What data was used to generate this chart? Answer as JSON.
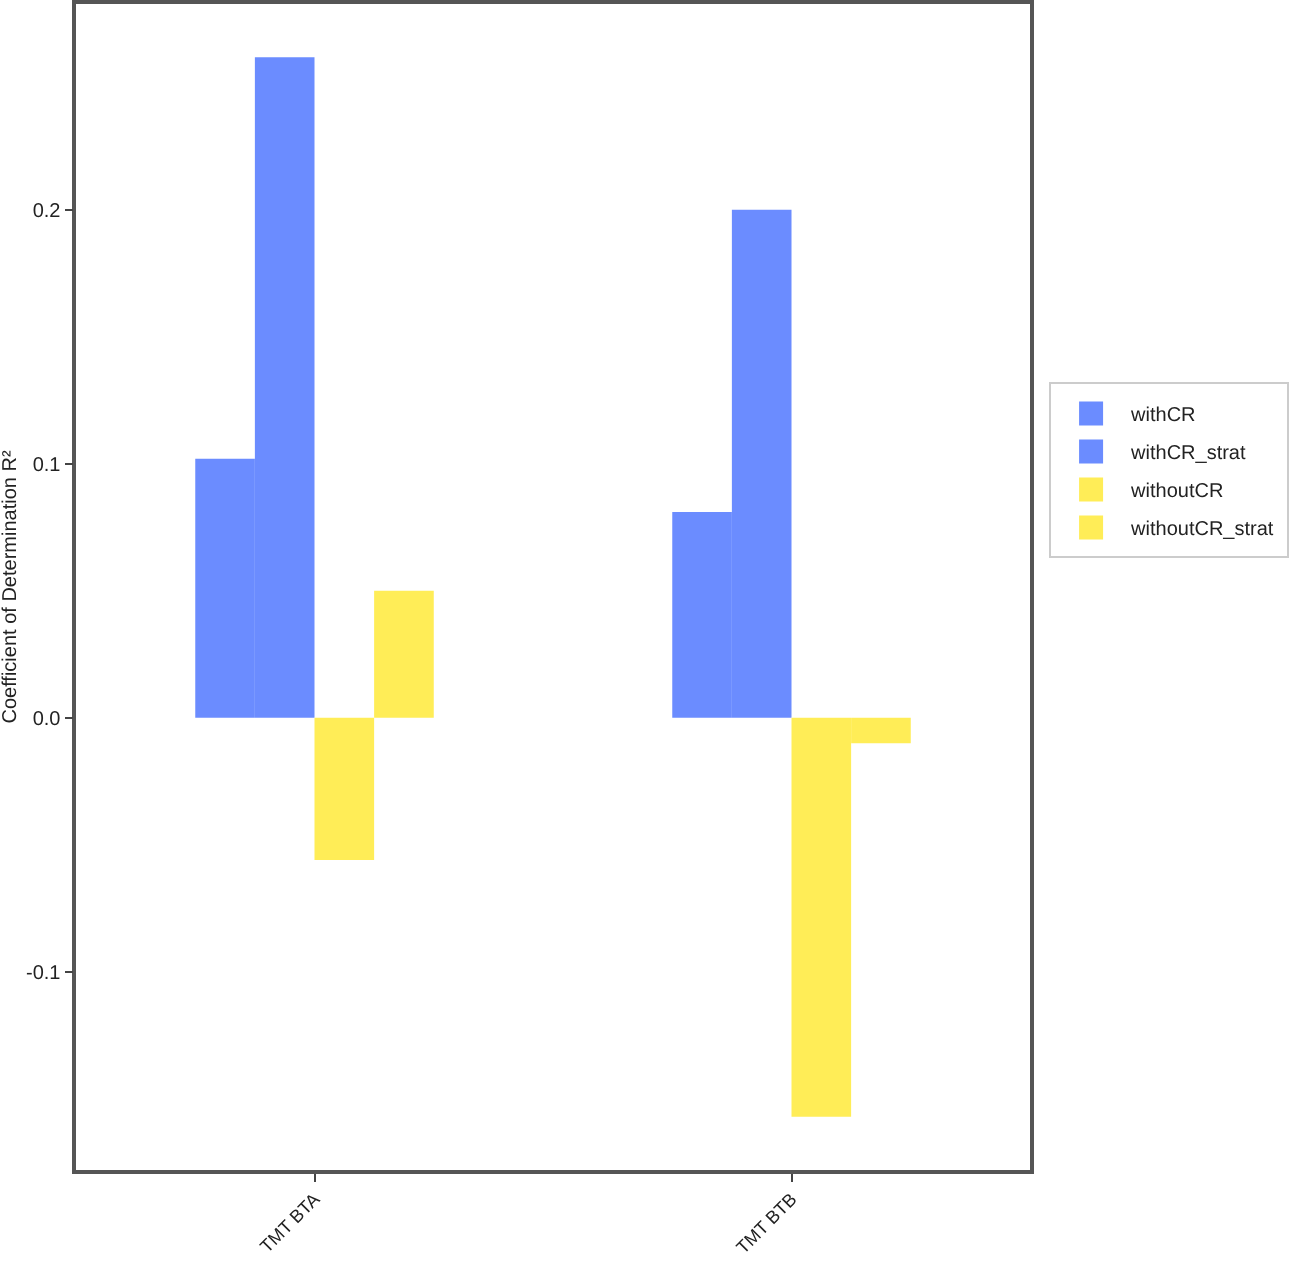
{
  "chart_data": {
    "type": "bar",
    "ylabel": "Coefficient of Determination R²",
    "categories": [
      "TMT BTA",
      "TMT BTB"
    ],
    "series": [
      {
        "name": "withCR",
        "color": "#6b8cff",
        "values": [
          0.102,
          0.081
        ]
      },
      {
        "name": "withCR_strat",
        "color": "#6b8cff",
        "values": [
          0.26,
          0.2
        ]
      },
      {
        "name": "withoutCR",
        "color": "#ffed57",
        "values": [
          -0.056,
          -0.157
        ]
      },
      {
        "name": "withoutCR_strat",
        "color": "#ffed57",
        "values": [
          0.05,
          -0.01
        ]
      }
    ],
    "ylim": [
      -0.178,
      0.281
    ],
    "yticks": [
      -0.1,
      {
        "value": 0,
        "label": "0.0"
      },
      0.1,
      0.2
    ],
    "grid": false,
    "legend": "right"
  }
}
